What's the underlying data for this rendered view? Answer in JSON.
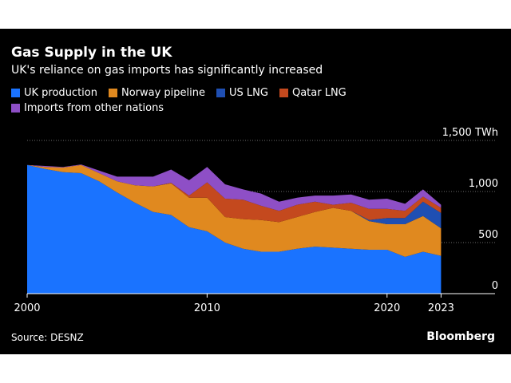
{
  "header": {
    "title": "Gas Supply in the UK",
    "subtitle": "UK's reliance on gas imports has significantly increased"
  },
  "footer": {
    "source": "Source: DESNZ",
    "brand": "Bloomberg"
  },
  "chart_data": {
    "type": "area",
    "stacked": true,
    "x": [
      2000,
      2001,
      2002,
      2003,
      2004,
      2005,
      2006,
      2007,
      2008,
      2009,
      2010,
      2011,
      2012,
      2013,
      2014,
      2015,
      2016,
      2017,
      2018,
      2019,
      2020,
      2021,
      2022,
      2023
    ],
    "series": [
      {
        "name": "UK production",
        "color": "#1a73ff",
        "values": [
          1260,
          1220,
          1190,
          1180,
          1100,
          990,
          890,
          800,
          770,
          650,
          610,
          500,
          440,
          410,
          410,
          440,
          460,
          450,
          440,
          430,
          430,
          360,
          410,
          370
        ]
      },
      {
        "name": "Norway pipeline",
        "color": "#e0891f",
        "values": [
          0,
          20,
          45,
          80,
          80,
          110,
          170,
          250,
          310,
          290,
          330,
          250,
          290,
          310,
          290,
          310,
          340,
          390,
          370,
          280,
          250,
          320,
          350,
          270
        ]
      },
      {
        "name": "US LNG",
        "color": "#1f4fb3",
        "values": [
          0,
          0,
          0,
          0,
          0,
          0,
          0,
          0,
          0,
          0,
          0,
          0,
          0,
          0,
          0,
          0,
          0,
          0,
          0,
          10,
          60,
          60,
          140,
          150
        ]
      },
      {
        "name": "Qatar LNG",
        "color": "#c4491e",
        "values": [
          0,
          0,
          0,
          0,
          0,
          0,
          0,
          0,
          5,
          20,
          150,
          180,
          190,
          140,
          110,
          120,
          100,
          30,
          80,
          110,
          90,
          70,
          50,
          50
        ]
      },
      {
        "name": "Imports from other nations",
        "color": "#8e4fc6",
        "values": [
          0,
          10,
          5,
          5,
          25,
          45,
          85,
          95,
          130,
          150,
          150,
          140,
          100,
          120,
          90,
          70,
          60,
          90,
          80,
          90,
          100,
          70,
          70,
          30
        ]
      }
    ],
    "xlim": [
      2000,
      2026
    ],
    "ylim": [
      0,
      1500
    ],
    "yticks": [
      0,
      500,
      1000,
      1500
    ],
    "ytick_labels": [
      "0",
      "500",
      "1,000",
      "1,500 TWh"
    ],
    "xticks": [
      2000,
      2010,
      2020,
      2023
    ],
    "xtick_labels": [
      "2000",
      "2010",
      "2020",
      "2023"
    ],
    "grid": "horizontal dotted",
    "legend_position": "top-left"
  }
}
